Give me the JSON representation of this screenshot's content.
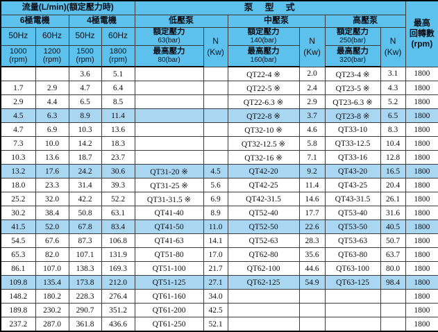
{
  "colors": {
    "header_bg": "#5cc1ed",
    "highlight_bg": "#a9d7f1",
    "border": "#3a3a3a",
    "text": "#0d0d15"
  },
  "table": {
    "header": {
      "flow_title": "流量(L/min)(額定壓力時)",
      "pump_title": "泵　型　式",
      "motor_6pole": "6極電機",
      "motor_4pole": "4極電機",
      "freqs": [
        "50Hz",
        "60Hz",
        "50Hz",
        "60Hz"
      ],
      "speeds": [
        "1000",
        "1200",
        "1500",
        "1800"
      ],
      "speed_unit": "(rpm)",
      "low_pump": {
        "title": "低壓泵",
        "rated_label": "額定壓力",
        "rated_value": "63(bar)",
        "max_label": "最高壓力",
        "max_value": "80(bar)"
      },
      "mid_pump": {
        "title": "中壓泵",
        "rated_label": "額定壓力",
        "rated_value": "140(bar)",
        "max_label": "最高壓力",
        "max_value": "160(bar)"
      },
      "high_pump": {
        "title": "高壓泵",
        "rated_label": "額定壓力",
        "rated_value": "250(bar)",
        "max_label": "最高壓力",
        "max_value": "320(bar)"
      },
      "power_label": "N",
      "power_unit": "(Kw)",
      "max_speed_lines": [
        "最高",
        "回轉數",
        "(rpm)"
      ]
    },
    "rows": [
      {
        "flow": [
          "",
          "",
          "3.6",
          "5.1"
        ],
        "low": [
          "",
          ""
        ],
        "mid": [
          "QT22-4 ※",
          "2.0"
        ],
        "high": [
          "QT23-4 ※",
          "3.1"
        ],
        "rpm": "1800",
        "hl": false
      },
      {
        "flow": [
          "1.7",
          "2.9",
          "4.7",
          "6.4"
        ],
        "low": [
          "",
          ""
        ],
        "mid": [
          "QT22-5 ※",
          "2.4"
        ],
        "high": [
          "QT23-5 ※",
          "4.3"
        ],
        "rpm": "1800",
        "hl": false
      },
      {
        "flow": [
          "2.9",
          "4.4",
          "6.5",
          "8.5"
        ],
        "low": [
          "",
          ""
        ],
        "mid": [
          "QT22-6.3 ※",
          "2.9"
        ],
        "high": [
          "QT23-6.3 ※",
          "5.2"
        ],
        "rpm": "1800",
        "hl": false
      },
      {
        "flow": [
          "4.5",
          "6.3",
          "8.9",
          "11.4"
        ],
        "low": [
          "",
          ""
        ],
        "mid": [
          "QT22-8 ※",
          "3.7"
        ],
        "high": [
          "QT23-8 ※",
          "6.5"
        ],
        "rpm": "1800",
        "hl": true
      },
      {
        "flow": [
          "4.7",
          "6.9",
          "10.3",
          "13.6"
        ],
        "low": [
          "",
          ""
        ],
        "mid": [
          "QT32-10 ※",
          "4.6"
        ],
        "high": [
          "QT33-10",
          "8.3"
        ],
        "rpm": "1800",
        "hl": false
      },
      {
        "flow": [
          "7.3",
          "10.0",
          "14.2",
          "18.3"
        ],
        "low": [
          "",
          ""
        ],
        "mid": [
          "QT32-12.5 ※",
          "5.8"
        ],
        "high": [
          "QT33-12.5",
          "10.4"
        ],
        "rpm": "1800",
        "hl": false
      },
      {
        "flow": [
          "10.3",
          "13.6",
          "18.7",
          "23.7"
        ],
        "low": [
          "",
          ""
        ],
        "mid": [
          "QT32-16 ※",
          "7.1"
        ],
        "high": [
          "QT33-16",
          "12.8"
        ],
        "rpm": "1800",
        "hl": false
      },
      {
        "flow": [
          "13.2",
          "17.6",
          "24.2",
          "30.6"
        ],
        "low": [
          "QT31-20 ※",
          "4.5"
        ],
        "mid": [
          "QT42-20",
          "9.2"
        ],
        "high": [
          "QT43-20",
          "16.5"
        ],
        "rpm": "1800",
        "hl": true
      },
      {
        "flow": [
          "18.0",
          "23.3",
          "31.4",
          "39.3"
        ],
        "low": [
          "QT31-25 ※",
          "5.6"
        ],
        "mid": [
          "QT42-25",
          "11.4"
        ],
        "high": [
          "QT43-25",
          "20.4"
        ],
        "rpm": "1800",
        "hl": false
      },
      {
        "flow": [
          "25.2",
          "32.0",
          "42.2",
          "52.2"
        ],
        "low": [
          "QT31-31.5 ※",
          "6.9"
        ],
        "mid": [
          "QT42-31.5",
          "14.6"
        ],
        "high": [
          "QT43-31.5",
          "26.1"
        ],
        "rpm": "1800",
        "hl": false
      },
      {
        "flow": [
          "30.2",
          "38.4",
          "50.8",
          "63.1"
        ],
        "low": [
          "QT41-40",
          "8.9"
        ],
        "mid": [
          "QT52-40",
          "17.7"
        ],
        "high": [
          "QT53-40",
          "31.6"
        ],
        "rpm": "1800",
        "hl": false
      },
      {
        "flow": [
          "41.5",
          "52.0",
          "67.8",
          "83.4"
        ],
        "low": [
          "QT41-50",
          "11.0"
        ],
        "mid": [
          "QT52-50",
          "22.6"
        ],
        "high": [
          "QT53-50",
          "40.5"
        ],
        "rpm": "1800",
        "hl": true
      },
      {
        "flow": [
          "54.5",
          "67.6",
          "87.3",
          "106.8"
        ],
        "low": [
          "QT41-63",
          "14.1"
        ],
        "mid": [
          "QT52-63",
          "28.3"
        ],
        "high": [
          "QT53-63",
          "50.7"
        ],
        "rpm": "1800",
        "hl": false
      },
      {
        "flow": [
          "65.3",
          "82.0",
          "107.1",
          "131.9"
        ],
        "low": [
          "QT51-80",
          "17.0"
        ],
        "mid": [
          "QT62-80",
          "35.6"
        ],
        "high": [
          "QT63-80",
          "63.7"
        ],
        "rpm": "1800",
        "hl": false
      },
      {
        "flow": [
          "86.1",
          "107.0",
          "138.3",
          "169.3"
        ],
        "low": [
          "QT51-100",
          "21.7"
        ],
        "mid": [
          "QT62-100",
          "44.6"
        ],
        "high": [
          "QT63-100",
          "80.0"
        ],
        "rpm": "1800",
        "hl": false
      },
      {
        "flow": [
          "109.8",
          "135.4",
          "173.8",
          "212.0"
        ],
        "low": [
          "QT51-125",
          "27.1"
        ],
        "mid": [
          "QT62-125",
          "54.9"
        ],
        "high": [
          "QT63-125",
          "98.4"
        ],
        "rpm": "1800",
        "hl": true
      },
      {
        "flow": [
          "148.2",
          "180.2",
          "228.3",
          "276.4"
        ],
        "low": [
          "QT61-160",
          "34.0"
        ],
        "mid": [
          "",
          ""
        ],
        "high": [
          "",
          ""
        ],
        "rpm": "1800",
        "hl": false
      },
      {
        "flow": [
          "189.8",
          "230.2",
          "290.7",
          "351.2"
        ],
        "low": [
          "QT61-200",
          "42.5"
        ],
        "mid": [
          "",
          ""
        ],
        "high": [
          "",
          ""
        ],
        "rpm": "1800",
        "hl": false
      },
      {
        "flow": [
          "237.2",
          "287.0",
          "361.8",
          "436.6"
        ],
        "low": [
          "QT61-250",
          "52.1"
        ],
        "mid": [
          "",
          ""
        ],
        "high": [
          "",
          ""
        ],
        "rpm": "1800",
        "hl": false
      }
    ]
  }
}
